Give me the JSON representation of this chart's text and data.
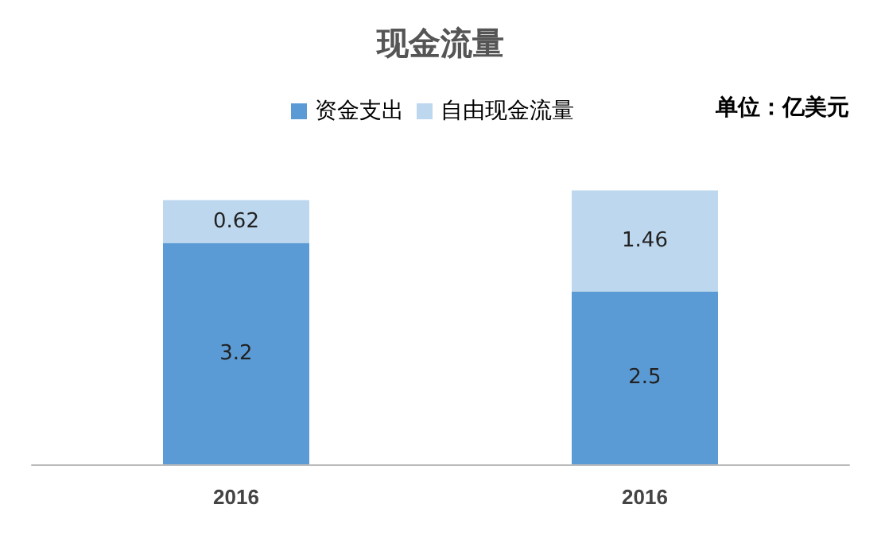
{
  "chart_data": {
    "type": "bar",
    "title": "现金流量",
    "categories": [
      "2016",
      "2016"
    ],
    "stacked": true,
    "data_labels": true,
    "legend": "top",
    "tick_labels": "x",
    "annotations": [
      "单位：亿美元"
    ],
    "series": [
      {
        "name": "资金支出",
        "color": "#5b9bd5",
        "values": [
          3.2,
          2.5
        ]
      },
      {
        "name": "自由现金流量",
        "color": "#bdd7ee",
        "values": [
          0.62,
          1.46
        ]
      }
    ]
  }
}
